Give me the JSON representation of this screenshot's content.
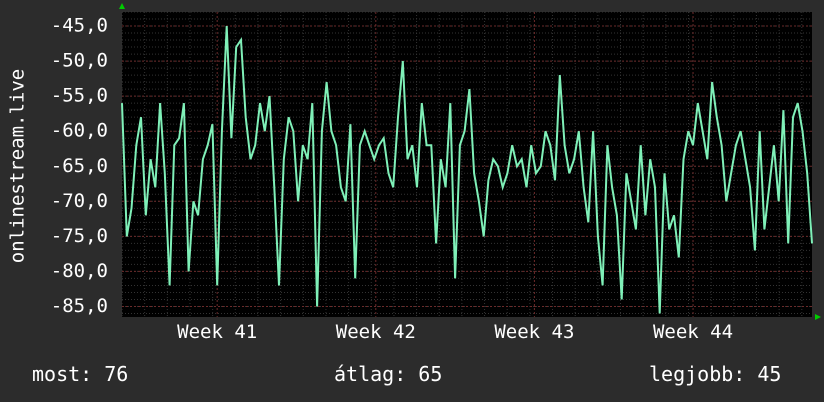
{
  "chart_data": {
    "type": "line",
    "ylabel": "onlinestream.live",
    "ylim": [
      -86.5,
      -43
    ],
    "yticks": [
      -45,
      -50,
      -55,
      -60,
      -65,
      -70,
      -75,
      -80,
      -85
    ],
    "ytick_labels": [
      "-45,0",
      "-50,0",
      "-55,0",
      "-60,0",
      "-65,0",
      "-70,0",
      "-75,0",
      "-80,0",
      "-85,0"
    ],
    "xlim": [
      40.4,
      44.75
    ],
    "xticks": [
      41,
      42,
      43,
      44
    ],
    "xtick_labels": [
      "Week 41",
      "Week 42",
      "Week 43",
      "Week 44"
    ],
    "grid": true,
    "colors": {
      "background": "#000000",
      "line": "#7ff0b8",
      "grid": "#4a4a4a",
      "arrow": "#00cc00"
    },
    "series": [
      {
        "x": [
          40.4,
          40.43,
          40.46,
          40.49,
          40.52,
          40.55,
          40.58,
          40.61,
          40.64,
          40.67,
          40.7,
          40.73,
          40.76,
          40.79,
          40.82,
          40.85,
          40.88,
          40.91,
          40.94,
          40.97,
          41.0,
          41.03,
          41.06,
          41.09,
          41.12,
          41.15,
          41.18,
          41.21,
          41.24,
          41.27,
          41.3,
          41.33,
          41.36,
          41.39,
          41.42,
          41.45,
          41.48,
          41.51,
          41.54,
          41.57,
          41.6,
          41.63,
          41.66,
          41.69,
          41.72,
          41.75,
          41.78,
          41.81,
          41.84,
          41.87,
          41.9,
          41.93,
          41.96,
          41.99,
          42.02,
          42.05,
          42.08,
          42.11,
          42.14,
          42.17,
          42.2,
          42.23,
          42.26,
          42.29,
          42.32,
          42.35,
          42.38,
          42.41,
          42.44,
          42.47,
          42.5,
          42.53,
          42.56,
          42.59,
          42.62,
          42.65,
          42.68,
          42.71,
          42.74,
          42.77,
          42.8,
          42.83,
          42.86,
          42.89,
          42.92,
          42.95,
          42.98,
          43.01,
          43.04,
          43.07,
          43.1,
          43.13,
          43.16,
          43.19,
          43.22,
          43.25,
          43.28,
          43.31,
          43.34,
          43.37,
          43.4,
          43.43,
          43.46,
          43.49,
          43.52,
          43.55,
          43.58,
          43.61,
          43.64,
          43.67,
          43.7,
          43.73,
          43.76,
          43.79,
          43.82,
          43.85,
          43.88,
          43.91,
          43.94,
          43.97,
          44.0,
          44.03,
          44.06,
          44.09,
          44.12,
          44.15,
          44.18,
          44.21,
          44.24,
          44.27,
          44.3,
          44.33,
          44.36,
          44.39,
          44.42,
          44.45,
          44.48,
          44.51,
          44.54,
          44.57,
          44.6,
          44.63,
          44.66,
          44.69,
          44.72,
          44.75
        ],
        "y": [
          -56,
          -75,
          -71,
          -62,
          -58,
          -72,
          -64,
          -68,
          -56,
          -66,
          -82,
          -62,
          -61,
          -56,
          -80,
          -70,
          -72,
          -64,
          -62,
          -59,
          -82,
          -60,
          -45,
          -61,
          -48,
          -47,
          -58,
          -64,
          -62,
          -56,
          -60,
          -55,
          -68,
          -82,
          -64,
          -58,
          -60,
          -70,
          -62,
          -64,
          -56,
          -85,
          -60,
          -53,
          -60,
          -62,
          -68,
          -70,
          -59,
          -81,
          -62,
          -60,
          -62,
          -64,
          -62,
          -61,
          -66,
          -68,
          -58,
          -50,
          -64,
          -62,
          -68,
          -56,
          -62,
          -62,
          -76,
          -64,
          -68,
          -56,
          -81,
          -62,
          -60,
          -54,
          -66,
          -70,
          -75,
          -67,
          -64,
          -65,
          -68,
          -66,
          -62,
          -65,
          -64,
          -68,
          -62,
          -66,
          -65,
          -60,
          -62,
          -67,
          -52,
          -62,
          -66,
          -64,
          -60,
          -68,
          -73,
          -60,
          -75,
          -82,
          -62,
          -68,
          -72,
          -84,
          -66,
          -70,
          -74,
          -62,
          -72,
          -64,
          -68,
          -86,
          -66,
          -74,
          -72,
          -78,
          -64,
          -60,
          -62,
          -56,
          -60,
          -64,
          -53,
          -58,
          -62,
          -70,
          -66,
          -62,
          -60,
          -64,
          -68,
          -77,
          -60,
          -74,
          -68,
          -62,
          -70,
          -57,
          -76,
          -58,
          -56,
          -60,
          -66,
          -76
        ]
      }
    ]
  },
  "footer": {
    "now": "most: 76",
    "avg": "átlag: 65",
    "best": "legjobb: 45"
  }
}
